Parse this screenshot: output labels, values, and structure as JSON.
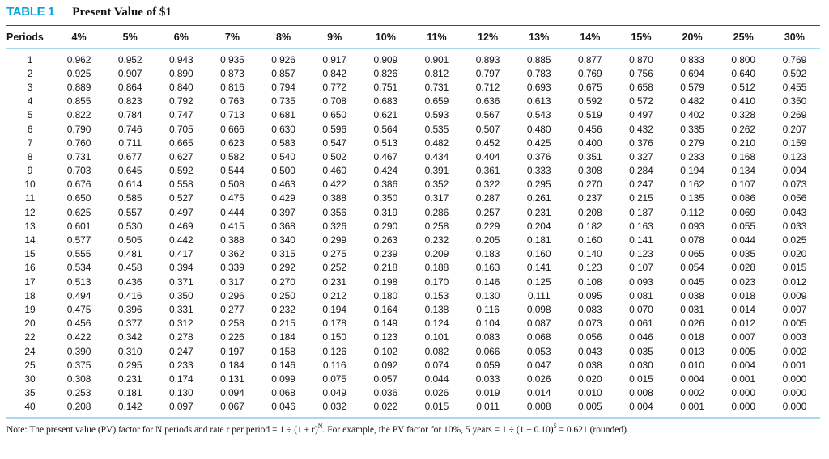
{
  "table": {
    "label": "TABLE 1",
    "title": "Present Value of $1",
    "colors": {
      "accent_cyan": "#00a3dd",
      "rule_light_blue": "#a8d9ee",
      "rule_dark": "#4a4a4a",
      "text": "#161616"
    },
    "columns": [
      "Periods",
      "4%",
      "5%",
      "6%",
      "7%",
      "8%",
      "9%",
      "10%",
      "11%",
      "12%",
      "13%",
      "14%",
      "15%",
      "20%",
      "25%",
      "30%"
    ],
    "rows": [
      {
        "period": "1",
        "values": [
          "0.962",
          "0.952",
          "0.943",
          "0.935",
          "0.926",
          "0.917",
          "0.909",
          "0.901",
          "0.893",
          "0.885",
          "0.877",
          "0.870",
          "0.833",
          "0.800",
          "0.769"
        ]
      },
      {
        "period": "2",
        "values": [
          "0.925",
          "0.907",
          "0.890",
          "0.873",
          "0.857",
          "0.842",
          "0.826",
          "0.812",
          "0.797",
          "0.783",
          "0.769",
          "0.756",
          "0.694",
          "0.640",
          "0.592"
        ]
      },
      {
        "period": "3",
        "values": [
          "0.889",
          "0.864",
          "0.840",
          "0.816",
          "0.794",
          "0.772",
          "0.751",
          "0.731",
          "0.712",
          "0.693",
          "0.675",
          "0.658",
          "0.579",
          "0.512",
          "0.455"
        ]
      },
      {
        "period": "4",
        "values": [
          "0.855",
          "0.823",
          "0.792",
          "0.763",
          "0.735",
          "0.708",
          "0.683",
          "0.659",
          "0.636",
          "0.613",
          "0.592",
          "0.572",
          "0.482",
          "0.410",
          "0.350"
        ]
      },
      {
        "period": "5",
        "values": [
          "0.822",
          "0.784",
          "0.747",
          "0.713",
          "0.681",
          "0.650",
          "0.621",
          "0.593",
          "0.567",
          "0.543",
          "0.519",
          "0.497",
          "0.402",
          "0.328",
          "0.269"
        ]
      },
      {
        "period": "6",
        "values": [
          "0.790",
          "0.746",
          "0.705",
          "0.666",
          "0.630",
          "0.596",
          "0.564",
          "0.535",
          "0.507",
          "0.480",
          "0.456",
          "0.432",
          "0.335",
          "0.262",
          "0.207"
        ]
      },
      {
        "period": "7",
        "values": [
          "0.760",
          "0.711",
          "0.665",
          "0.623",
          "0.583",
          "0.547",
          "0.513",
          "0.482",
          "0.452",
          "0.425",
          "0.400",
          "0.376",
          "0.279",
          "0.210",
          "0.159"
        ]
      },
      {
        "period": "8",
        "values": [
          "0.731",
          "0.677",
          "0.627",
          "0.582",
          "0.540",
          "0.502",
          "0.467",
          "0.434",
          "0.404",
          "0.376",
          "0.351",
          "0.327",
          "0.233",
          "0.168",
          "0.123"
        ]
      },
      {
        "period": "9",
        "values": [
          "0.703",
          "0.645",
          "0.592",
          "0.544",
          "0.500",
          "0.460",
          "0.424",
          "0.391",
          "0.361",
          "0.333",
          "0.308",
          "0.284",
          "0.194",
          "0.134",
          "0.094"
        ]
      },
      {
        "period": "10",
        "values": [
          "0.676",
          "0.614",
          "0.558",
          "0.508",
          "0.463",
          "0.422",
          "0.386",
          "0.352",
          "0.322",
          "0.295",
          "0.270",
          "0.247",
          "0.162",
          "0.107",
          "0.073"
        ]
      },
      {
        "period": "11",
        "values": [
          "0.650",
          "0.585",
          "0.527",
          "0.475",
          "0.429",
          "0.388",
          "0.350",
          "0.317",
          "0.287",
          "0.261",
          "0.237",
          "0.215",
          "0.135",
          "0.086",
          "0.056"
        ]
      },
      {
        "period": "12",
        "values": [
          "0.625",
          "0.557",
          "0.497",
          "0.444",
          "0.397",
          "0.356",
          "0.319",
          "0.286",
          "0.257",
          "0.231",
          "0.208",
          "0.187",
          "0.112",
          "0.069",
          "0.043"
        ]
      },
      {
        "period": "13",
        "values": [
          "0.601",
          "0.530",
          "0.469",
          "0.415",
          "0.368",
          "0.326",
          "0.290",
          "0.258",
          "0.229",
          "0.204",
          "0.182",
          "0.163",
          "0.093",
          "0.055",
          "0.033"
        ]
      },
      {
        "period": "14",
        "values": [
          "0.577",
          "0.505",
          "0.442",
          "0.388",
          "0.340",
          "0.299",
          "0.263",
          "0.232",
          "0.205",
          "0.181",
          "0.160",
          "0.141",
          "0.078",
          "0.044",
          "0.025"
        ]
      },
      {
        "period": "15",
        "values": [
          "0.555",
          "0.481",
          "0.417",
          "0.362",
          "0.315",
          "0.275",
          "0.239",
          "0.209",
          "0.183",
          "0.160",
          "0.140",
          "0.123",
          "0.065",
          "0.035",
          "0.020"
        ]
      },
      {
        "period": "16",
        "values": [
          "0.534",
          "0.458",
          "0.394",
          "0.339",
          "0.292",
          "0.252",
          "0.218",
          "0.188",
          "0.163",
          "0.141",
          "0.123",
          "0.107",
          "0.054",
          "0.028",
          "0.015"
        ]
      },
      {
        "period": "17",
        "values": [
          "0.513",
          "0.436",
          "0.371",
          "0.317",
          "0.270",
          "0.231",
          "0.198",
          "0.170",
          "0.146",
          "0.125",
          "0.108",
          "0.093",
          "0.045",
          "0.023",
          "0.012"
        ]
      },
      {
        "period": "18",
        "values": [
          "0.494",
          "0.416",
          "0.350",
          "0.296",
          "0.250",
          "0.212",
          "0.180",
          "0.153",
          "0.130",
          "0.111",
          "0.095",
          "0.081",
          "0.038",
          "0.018",
          "0.009"
        ]
      },
      {
        "period": "19",
        "values": [
          "0.475",
          "0.396",
          "0.331",
          "0.277",
          "0.232",
          "0.194",
          "0.164",
          "0.138",
          "0.116",
          "0.098",
          "0.083",
          "0.070",
          "0.031",
          "0.014",
          "0.007"
        ]
      },
      {
        "period": "20",
        "values": [
          "0.456",
          "0.377",
          "0.312",
          "0.258",
          "0.215",
          "0.178",
          "0.149",
          "0.124",
          "0.104",
          "0.087",
          "0.073",
          "0.061",
          "0.026",
          "0.012",
          "0.005"
        ]
      },
      {
        "period": "22",
        "values": [
          "0.422",
          "0.342",
          "0.278",
          "0.226",
          "0.184",
          "0.150",
          "0.123",
          "0.101",
          "0.083",
          "0.068",
          "0.056",
          "0.046",
          "0.018",
          "0.007",
          "0.003"
        ]
      },
      {
        "period": "24",
        "values": [
          "0.390",
          "0.310",
          "0.247",
          "0.197",
          "0.158",
          "0.126",
          "0.102",
          "0.082",
          "0.066",
          "0.053",
          "0.043",
          "0.035",
          "0.013",
          "0.005",
          "0.002"
        ]
      },
      {
        "period": "25",
        "values": [
          "0.375",
          "0.295",
          "0.233",
          "0.184",
          "0.146",
          "0.116",
          "0.092",
          "0.074",
          "0.059",
          "0.047",
          "0.038",
          "0.030",
          "0.010",
          "0.004",
          "0.001"
        ]
      },
      {
        "period": "30",
        "values": [
          "0.308",
          "0.231",
          "0.174",
          "0.131",
          "0.099",
          "0.075",
          "0.057",
          "0.044",
          "0.033",
          "0.026",
          "0.020",
          "0.015",
          "0.004",
          "0.001",
          "0.000"
        ]
      },
      {
        "period": "35",
        "values": [
          "0.253",
          "0.181",
          "0.130",
          "0.094",
          "0.068",
          "0.049",
          "0.036",
          "0.026",
          "0.019",
          "0.014",
          "0.010",
          "0.008",
          "0.002",
          "0.000",
          "0.000"
        ]
      },
      {
        "period": "40",
        "values": [
          "0.208",
          "0.142",
          "0.097",
          "0.067",
          "0.046",
          "0.032",
          "0.022",
          "0.015",
          "0.011",
          "0.008",
          "0.005",
          "0.004",
          "0.001",
          "0.000",
          "0.000"
        ]
      }
    ],
    "note": {
      "part1": "Note: The present value (PV) factor for N periods and rate r per period = 1 ÷ (1 + r)",
      "sup1": "N",
      "part2": ". For example, the PV factor for 10%, 5 years = 1 ÷ (1 + 0.10)",
      "sup2": "5",
      "part3": " = 0.621 (rounded)."
    }
  }
}
